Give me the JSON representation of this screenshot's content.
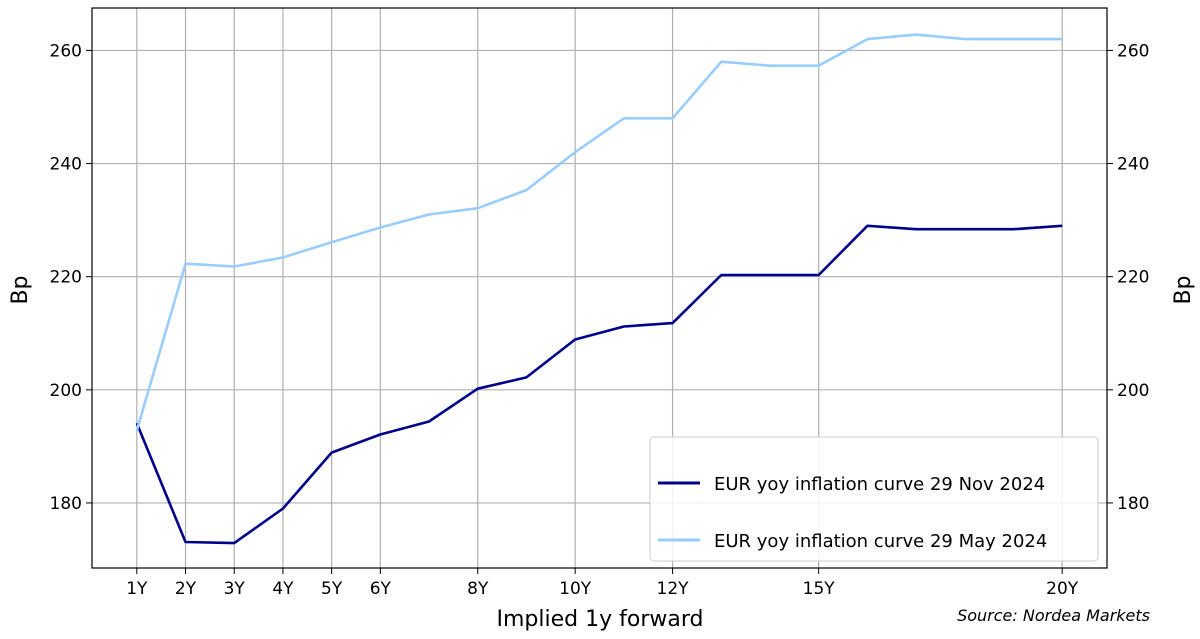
{
  "chart_data": {
    "type": "line",
    "x": [
      1,
      2,
      3,
      4,
      5,
      6,
      7,
      8,
      9,
      10,
      11,
      12,
      13,
      14,
      15,
      16,
      17,
      18,
      19,
      20
    ],
    "x_ticks": [
      {
        "x": 1,
        "label": "1Y"
      },
      {
        "x": 2,
        "label": "2Y"
      },
      {
        "x": 3,
        "label": "3Y"
      },
      {
        "x": 4,
        "label": "4Y"
      },
      {
        "x": 5,
        "label": "5Y"
      },
      {
        "x": 6,
        "label": "6Y"
      },
      {
        "x": 8,
        "label": "8Y"
      },
      {
        "x": 10,
        "label": "10Y"
      },
      {
        "x": 12,
        "label": "12Y"
      },
      {
        "x": 15,
        "label": "15Y"
      },
      {
        "x": 20,
        "label": "20Y"
      }
    ],
    "y_ticks": [
      180,
      200,
      220,
      240,
      260
    ],
    "xlim": [
      0.08,
      20.92
    ],
    "ylim": [
      168.5,
      267.5
    ],
    "xlabel": "Implied 1y forward",
    "ylabel": "Bp",
    "ylabel_right": "Bp",
    "grid": true,
    "legend_position": "lower-right",
    "series": [
      {
        "name": "EUR yoy inflation curve 29 Nov 2024",
        "color": "#00008b",
        "values": [
          194.1,
          173.1,
          172.9,
          179.0,
          188.9,
          192.1,
          194.4,
          200.2,
          202.2,
          208.9,
          211.2,
          211.8,
          220.3,
          220.3,
          220.3,
          229.0,
          228.4,
          228.4,
          228.4,
          229.0
        ]
      },
      {
        "name": "EUR yoy inflation curve 29 May 2024",
        "color": "#99ccff",
        "values": [
          192.8,
          222.3,
          221.8,
          223.4,
          226.1,
          228.7,
          231.0,
          232.1,
          235.3,
          242.0,
          248.0,
          248.0,
          258.0,
          257.3,
          257.3,
          262.0,
          262.8,
          262.0,
          262.0,
          262.0
        ]
      }
    ]
  },
  "source_note": "Source: Nordea Markets"
}
